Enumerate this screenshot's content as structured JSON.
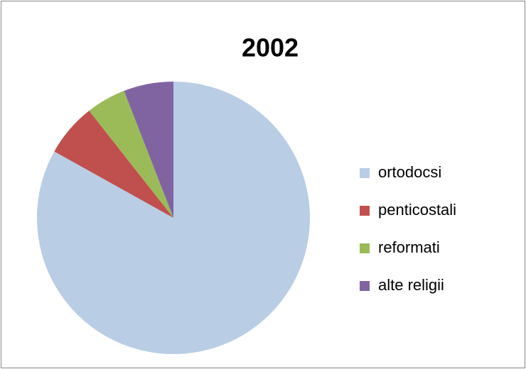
{
  "chart_data": {
    "type": "pie",
    "title": "2002",
    "categories": [
      "ortodocsi",
      "penticostali",
      "reformati",
      "alte religii"
    ],
    "values": [
      83.1,
      6.3,
      4.7,
      5.9
    ],
    "colors": [
      "#b9cde5",
      "#c0504d",
      "#9bbb59",
      "#8064a2"
    ],
    "legend": "right"
  }
}
